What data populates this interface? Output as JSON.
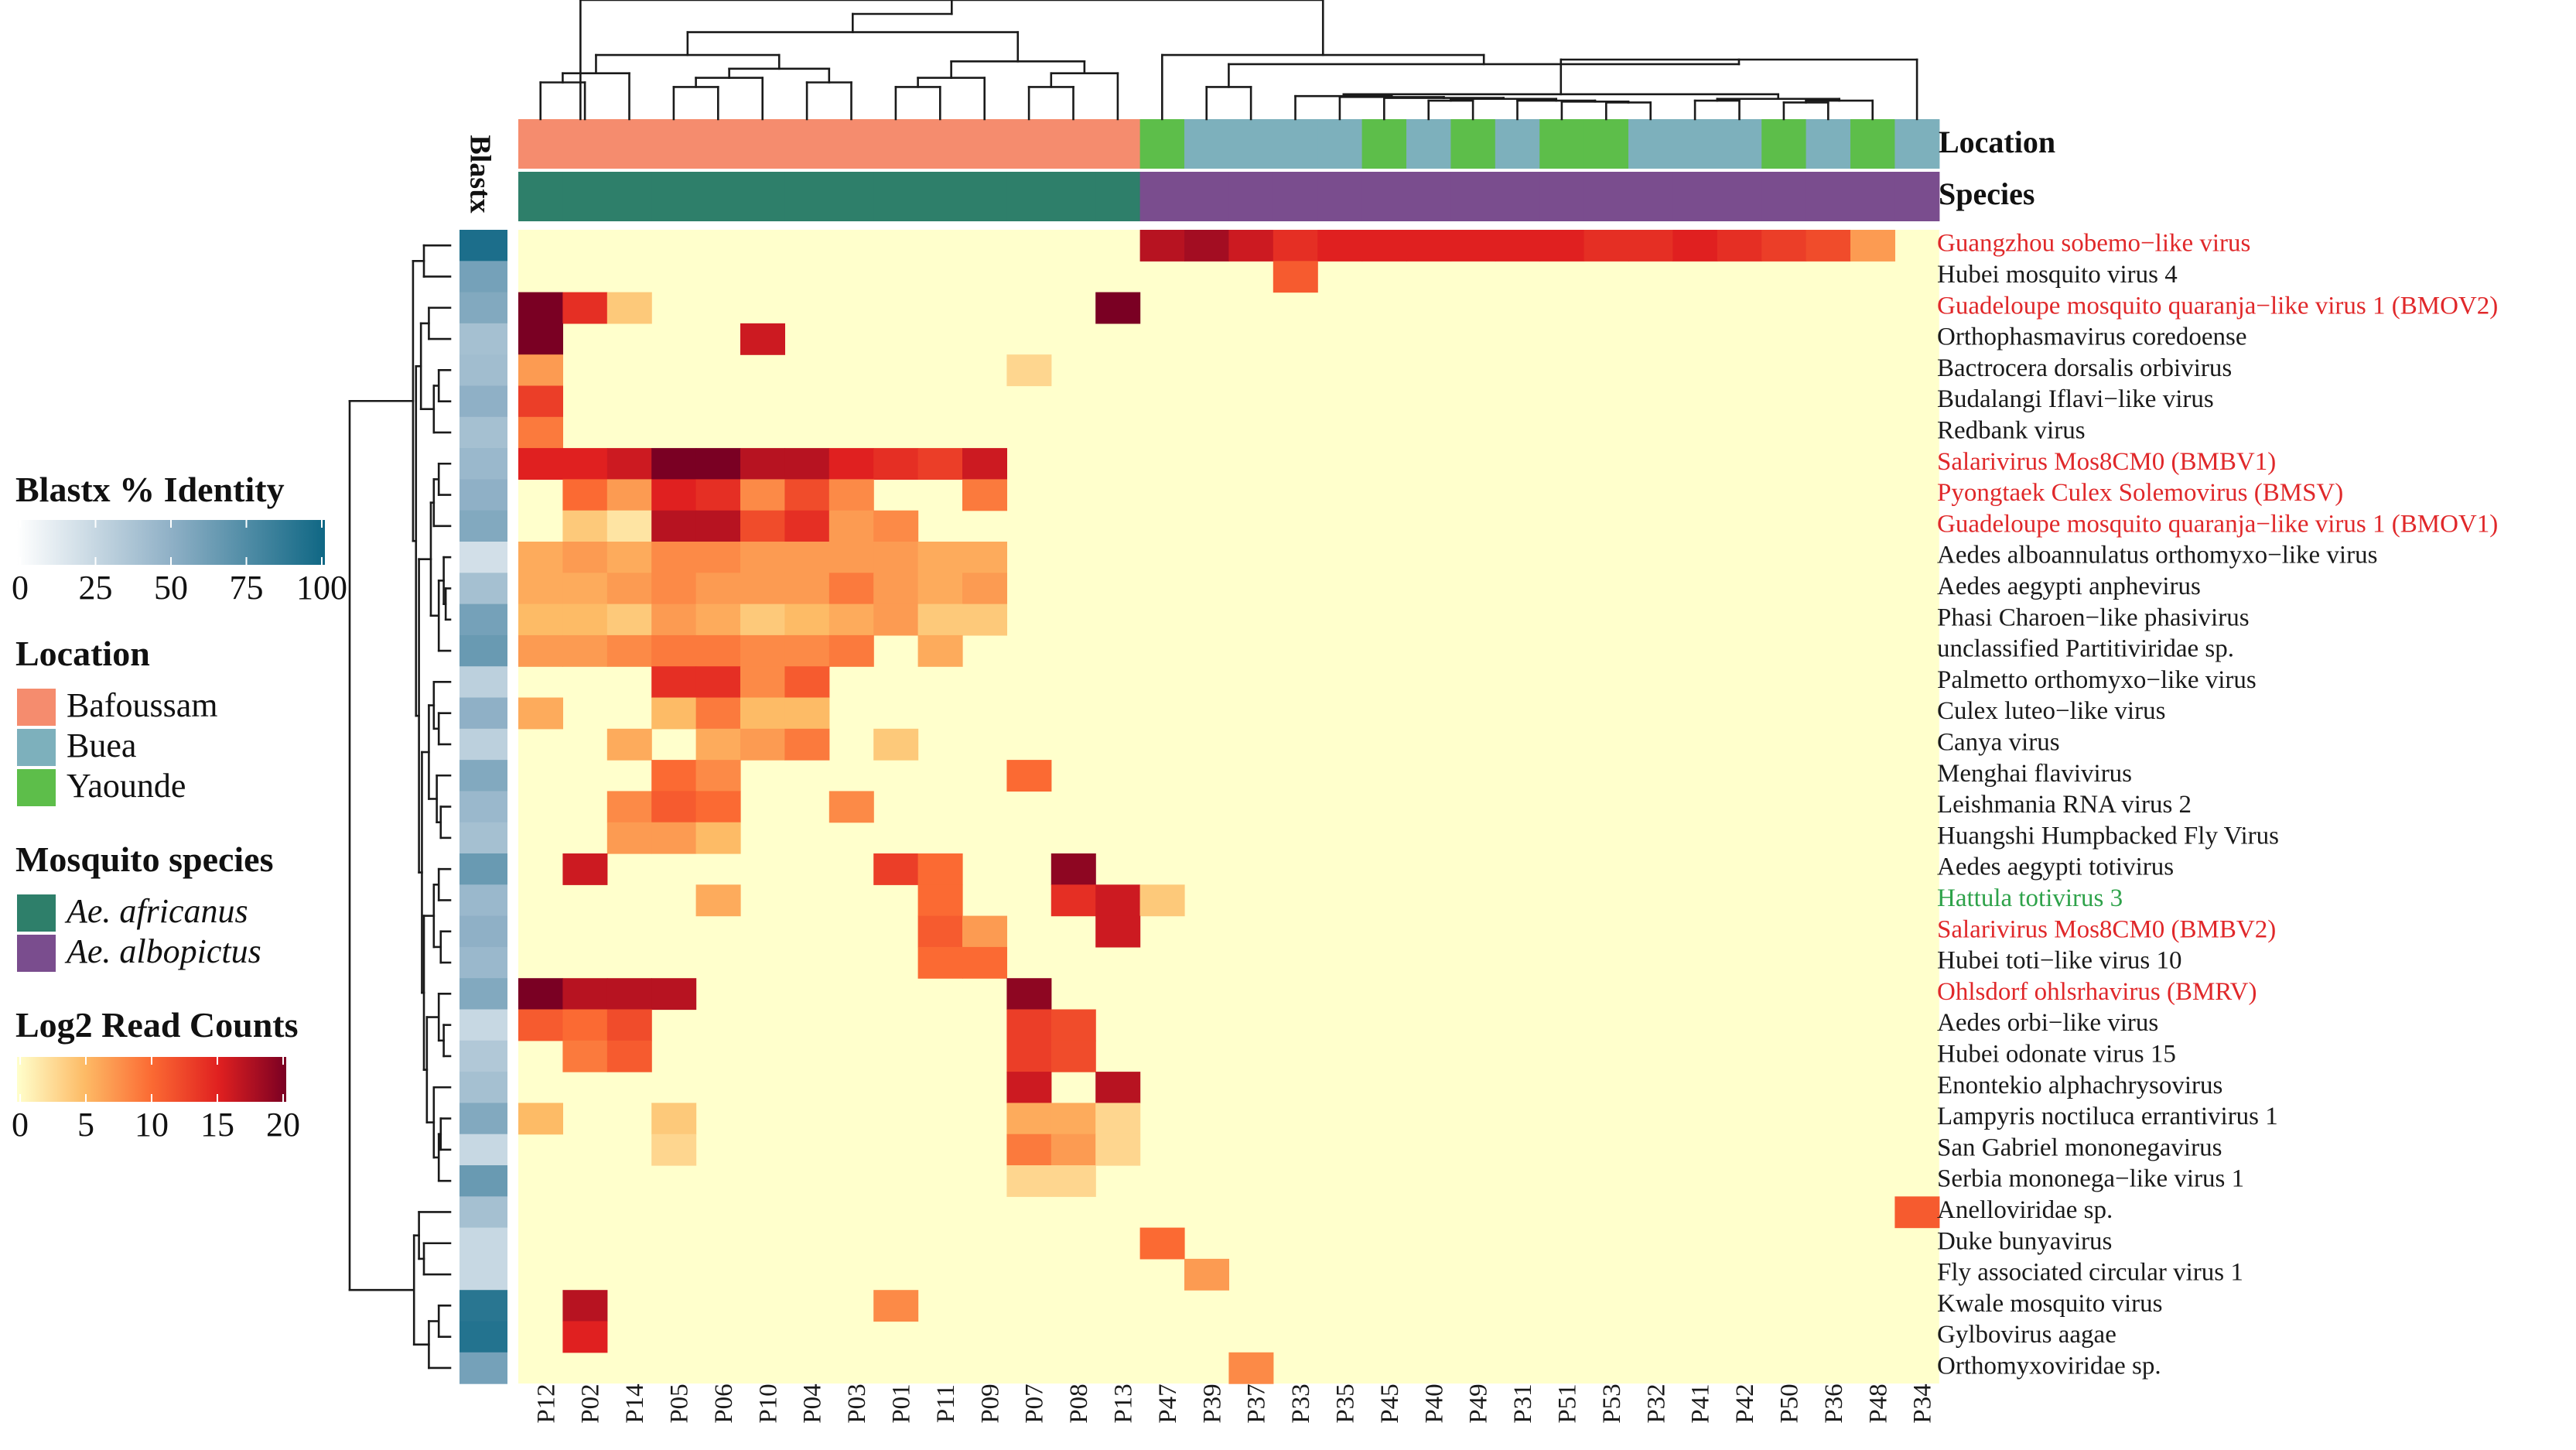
{
  "chart_data": {
    "type": "heatmap",
    "samples": [
      "P12",
      "P02",
      "P14",
      "P05",
      "P06",
      "P10",
      "P04",
      "P03",
      "P01",
      "P11",
      "P09",
      "P07",
      "P08",
      "P13",
      "P47",
      "P39",
      "P37",
      "P33",
      "P35",
      "P45",
      "P40",
      "P49",
      "P31",
      "P51",
      "P53",
      "P32",
      "P41",
      "P42",
      "P50",
      "P36",
      "P48",
      "P34"
    ],
    "location": [
      "Bafoussam",
      "Bafoussam",
      "Bafoussam",
      "Bafoussam",
      "Bafoussam",
      "Bafoussam",
      "Bafoussam",
      "Bafoussam",
      "Bafoussam",
      "Bafoussam",
      "Bafoussam",
      "Bafoussam",
      "Bafoussam",
      "Bafoussam",
      "Yaounde",
      "Buea",
      "Buea",
      "Buea",
      "Buea",
      "Yaounde",
      "Buea",
      "Yaounde",
      "Buea",
      "Yaounde",
      "Yaounde",
      "Buea",
      "Buea",
      "Buea",
      "Yaounde",
      "Buea",
      "Yaounde",
      "Buea"
    ],
    "species": [
      "Ae. africanus",
      "Ae. africanus",
      "Ae. africanus",
      "Ae. africanus",
      "Ae. africanus",
      "Ae. africanus",
      "Ae. africanus",
      "Ae. africanus",
      "Ae. africanus",
      "Ae. africanus",
      "Ae. africanus",
      "Ae. africanus",
      "Ae. africanus",
      "Ae. africanus",
      "Ae. albopictus",
      "Ae. albopictus",
      "Ae. albopictus",
      "Ae. albopictus",
      "Ae. albopictus",
      "Ae. albopictus",
      "Ae. albopictus",
      "Ae. albopictus",
      "Ae. albopictus",
      "Ae. albopictus",
      "Ae. albopictus",
      "Ae. albopictus",
      "Ae. albopictus",
      "Ae. albopictus",
      "Ae. albopictus",
      "Ae. albopictus",
      "Ae. albopictus",
      "Ae. albopictus"
    ],
    "viruses": [
      {
        "name": "Guangzhou sobemo−like virus",
        "group": "red",
        "blastx": 95
      },
      {
        "name": "Hubei mosquito virus 4",
        "group": "black",
        "blastx": 60
      },
      {
        "name": "Guadeloupe mosquito quaranja−like virus 1 (BMOV2)",
        "group": "red",
        "blastx": 55
      },
      {
        "name": "Orthophasmavirus coredoense",
        "group": "black",
        "blastx": 40
      },
      {
        "name": "Bactrocera dorsalis orbivirus",
        "group": "black",
        "blastx": 42
      },
      {
        "name": "Budalangi Iflavi−like virus",
        "group": "black",
        "blastx": 50
      },
      {
        "name": "Redbank virus",
        "group": "black",
        "blastx": 40
      },
      {
        "name": "Salarivirus Mos8CM0 (BMBV1)",
        "group": "red",
        "blastx": 45
      },
      {
        "name": "Pyongtaek Culex Solemovirus (BMSV)",
        "group": "red",
        "blastx": 50
      },
      {
        "name": "Guadeloupe mosquito quaranja−like virus 1 (BMOV1)",
        "group": "red",
        "blastx": 55
      },
      {
        "name": "Aedes alboannulatus orthomyxo−like virus",
        "group": "black",
        "blastx": 20
      },
      {
        "name": "Aedes aegypti anphevirus",
        "group": "black",
        "blastx": 40
      },
      {
        "name": "Phasi Charoen−like phasivirus",
        "group": "black",
        "blastx": 60
      },
      {
        "name": "unclassified Partitiviridae sp.",
        "group": "black",
        "blastx": 65
      },
      {
        "name": "Palmetto orthomyxo−like virus",
        "group": "black",
        "blastx": 30
      },
      {
        "name": "Culex luteo−like virus",
        "group": "black",
        "blastx": 50
      },
      {
        "name": "Canya virus",
        "group": "black",
        "blastx": 30
      },
      {
        "name": "Menghai flavivirus",
        "group": "black",
        "blastx": 55
      },
      {
        "name": "Leishmania RNA virus 2",
        "group": "black",
        "blastx": 45
      },
      {
        "name": "Huangshi Humpbacked Fly Virus",
        "group": "black",
        "blastx": 40
      },
      {
        "name": "Aedes aegypti totivirus",
        "group": "black",
        "blastx": 65
      },
      {
        "name": "Hattula totivirus 3",
        "group": "green",
        "blastx": 45
      },
      {
        "name": "Salarivirus Mos8CM0 (BMBV2)",
        "group": "red",
        "blastx": 50
      },
      {
        "name": "Hubei toti−like virus 10",
        "group": "black",
        "blastx": 45
      },
      {
        "name": "Ohlsdorf ohlsrhavirus (BMRV)",
        "group": "red",
        "blastx": 55
      },
      {
        "name": "Aedes orbi−like virus",
        "group": "black",
        "blastx": 25
      },
      {
        "name": "Hubei odonate virus 15",
        "group": "black",
        "blastx": 35
      },
      {
        "name": "Enontekio alphachrysovirus",
        "group": "black",
        "blastx": 40
      },
      {
        "name": "Lampyris noctiluca errantivirus 1",
        "group": "black",
        "blastx": 55
      },
      {
        "name": "San Gabriel mononegavirus",
        "group": "black",
        "blastx": 25
      },
      {
        "name": "Serbia mononega−like virus 1",
        "group": "black",
        "blastx": 65
      },
      {
        "name": "Anelloviridae sp.",
        "group": "black",
        "blastx": 40
      },
      {
        "name": "Duke bunyavirus",
        "group": "black",
        "blastx": 25
      },
      {
        "name": "Fly associated circular virus 1",
        "group": "black",
        "blastx": 25
      },
      {
        "name": "Kwale mosquito virus",
        "group": "black",
        "blastx": 90
      },
      {
        "name": "Gylbovirus aagae",
        "group": "black",
        "blastx": 92
      },
      {
        "name": "Orthomyxoviridae sp.",
        "group": "black",
        "blastx": 60
      }
    ],
    "nonzero_log2_counts": [
      [
        0,
        14,
        17
      ],
      [
        0,
        15,
        18
      ],
      [
        0,
        16,
        16
      ],
      [
        0,
        17,
        14
      ],
      [
        0,
        18,
        15
      ],
      [
        0,
        19,
        15
      ],
      [
        0,
        20,
        15
      ],
      [
        0,
        21,
        15
      ],
      [
        0,
        22,
        15
      ],
      [
        0,
        23,
        15
      ],
      [
        0,
        24,
        14
      ],
      [
        0,
        25,
        14
      ],
      [
        0,
        26,
        15
      ],
      [
        0,
        27,
        14
      ],
      [
        0,
        28,
        13
      ],
      [
        0,
        29,
        12
      ],
      [
        0,
        30,
        7
      ],
      [
        1,
        17,
        11
      ],
      [
        2,
        0,
        20
      ],
      [
        2,
        1,
        14
      ],
      [
        2,
        2,
        4
      ],
      [
        2,
        13,
        20
      ],
      [
        3,
        0,
        20
      ],
      [
        3,
        5,
        16
      ],
      [
        4,
        0,
        7
      ],
      [
        4,
        11,
        3
      ],
      [
        5,
        0,
        13
      ],
      [
        6,
        0,
        9
      ],
      [
        7,
        0,
        15
      ],
      [
        7,
        1,
        15
      ],
      [
        7,
        2,
        16
      ],
      [
        7,
        3,
        20
      ],
      [
        7,
        4,
        20
      ],
      [
        7,
        5,
        17
      ],
      [
        7,
        6,
        17
      ],
      [
        7,
        7,
        15
      ],
      [
        7,
        8,
        14
      ],
      [
        7,
        9,
        13
      ],
      [
        7,
        10,
        16
      ],
      [
        8,
        1,
        10
      ],
      [
        8,
        2,
        7
      ],
      [
        8,
        3,
        15
      ],
      [
        8,
        4,
        14
      ],
      [
        8,
        5,
        8
      ],
      [
        8,
        6,
        12
      ],
      [
        8,
        7,
        8
      ],
      [
        8,
        10,
        9
      ],
      [
        9,
        1,
        4
      ],
      [
        9,
        2,
        2
      ],
      [
        9,
        3,
        17
      ],
      [
        9,
        4,
        17
      ],
      [
        9,
        5,
        12
      ],
      [
        9,
        6,
        14
      ],
      [
        9,
        7,
        7
      ],
      [
        9,
        8,
        8
      ],
      [
        10,
        0,
        6
      ],
      [
        10,
        1,
        7
      ],
      [
        10,
        2,
        6
      ],
      [
        10,
        3,
        8
      ],
      [
        10,
        4,
        8
      ],
      [
        10,
        5,
        7
      ],
      [
        10,
        6,
        7
      ],
      [
        10,
        7,
        7
      ],
      [
        10,
        8,
        7
      ],
      [
        10,
        9,
        6
      ],
      [
        10,
        10,
        6
      ],
      [
        11,
        0,
        6
      ],
      [
        11,
        1,
        6
      ],
      [
        11,
        2,
        7
      ],
      [
        11,
        3,
        8
      ],
      [
        11,
        4,
        7
      ],
      [
        11,
        5,
        7
      ],
      [
        11,
        6,
        7
      ],
      [
        11,
        7,
        9
      ],
      [
        11,
        8,
        7
      ],
      [
        11,
        9,
        6
      ],
      [
        11,
        10,
        7
      ],
      [
        12,
        0,
        5
      ],
      [
        12,
        1,
        5
      ],
      [
        12,
        2,
        4
      ],
      [
        12,
        3,
        7
      ],
      [
        12,
        4,
        6
      ],
      [
        12,
        5,
        4
      ],
      [
        12,
        6,
        5
      ],
      [
        12,
        7,
        6
      ],
      [
        12,
        8,
        7
      ],
      [
        12,
        9,
        4
      ],
      [
        12,
        10,
        4
      ],
      [
        13,
        0,
        7
      ],
      [
        13,
        1,
        7
      ],
      [
        13,
        2,
        8
      ],
      [
        13,
        3,
        9
      ],
      [
        13,
        4,
        9
      ],
      [
        13,
        5,
        8
      ],
      [
        13,
        6,
        8
      ],
      [
        13,
        7,
        9
      ],
      [
        13,
        9,
        6
      ],
      [
        14,
        3,
        14
      ],
      [
        14,
        4,
        14
      ],
      [
        14,
        5,
        8
      ],
      [
        14,
        6,
        11
      ],
      [
        15,
        0,
        6
      ],
      [
        15,
        3,
        5
      ],
      [
        15,
        4,
        9
      ],
      [
        15,
        5,
        5
      ],
      [
        15,
        6,
        5
      ],
      [
        16,
        2,
        6
      ],
      [
        16,
        4,
        6
      ],
      [
        16,
        5,
        7
      ],
      [
        16,
        6,
        9
      ],
      [
        16,
        8,
        4
      ],
      [
        17,
        3,
        10
      ],
      [
        17,
        4,
        8
      ],
      [
        17,
        11,
        10
      ],
      [
        18,
        2,
        8
      ],
      [
        18,
        3,
        11
      ],
      [
        18,
        4,
        10
      ],
      [
        18,
        7,
        8
      ],
      [
        19,
        2,
        7
      ],
      [
        19,
        3,
        7
      ],
      [
        19,
        4,
        5
      ],
      [
        20,
        1,
        16
      ],
      [
        20,
        8,
        13
      ],
      [
        20,
        9,
        10
      ],
      [
        20,
        12,
        19
      ],
      [
        21,
        4,
        6
      ],
      [
        21,
        9,
        10
      ],
      [
        21,
        12,
        14
      ],
      [
        21,
        13,
        16
      ],
      [
        21,
        14,
        4
      ],
      [
        22,
        9,
        11
      ],
      [
        22,
        10,
        7
      ],
      [
        22,
        13,
        16
      ],
      [
        23,
        9,
        10
      ],
      [
        23,
        10,
        10
      ],
      [
        24,
        0,
        20
      ],
      [
        24,
        1,
        17
      ],
      [
        24,
        2,
        17
      ],
      [
        24,
        3,
        17
      ],
      [
        24,
        11,
        19
      ],
      [
        25,
        0,
        11
      ],
      [
        25,
        1,
        10
      ],
      [
        25,
        2,
        12
      ],
      [
        25,
        11,
        13
      ],
      [
        25,
        12,
        12
      ],
      [
        26,
        1,
        9
      ],
      [
        26,
        2,
        11
      ],
      [
        26,
        11,
        13
      ],
      [
        26,
        12,
        12
      ],
      [
        27,
        11,
        16
      ],
      [
        27,
        13,
        17
      ],
      [
        28,
        0,
        5
      ],
      [
        28,
        3,
        4
      ],
      [
        28,
        11,
        6
      ],
      [
        28,
        12,
        6
      ],
      [
        28,
        13,
        3
      ],
      [
        29,
        3,
        3
      ],
      [
        29,
        11,
        9
      ],
      [
        29,
        12,
        7
      ],
      [
        29,
        13,
        3
      ],
      [
        30,
        11,
        3
      ],
      [
        30,
        12,
        3
      ],
      [
        31,
        31,
        11
      ],
      [
        32,
        14,
        10
      ],
      [
        33,
        15,
        7
      ],
      [
        34,
        1,
        17
      ],
      [
        34,
        8,
        8
      ],
      [
        35,
        1,
        15
      ],
      [
        36,
        16,
        8
      ]
    ],
    "annotation_titles": [
      "Blastx",
      "Location",
      "Species"
    ],
    "legends": {
      "blastx": {
        "title": "Blastx % Identity",
        "ticks": [
          "0",
          "25",
          "50",
          "75",
          "100"
        ],
        "range": [
          0,
          100
        ]
      },
      "location": {
        "title": "Location",
        "items": [
          "Bafoussam",
          "Buea",
          "Yaounde"
        ],
        "colors": [
          "#f58c6e",
          "#7db0bc",
          "#5dbe4a"
        ]
      },
      "species": {
        "title": "Mosquito species",
        "items": [
          "Ae. africanus",
          "Ae. albopictus"
        ],
        "colors": [
          "#2e7f6a",
          "#7a4d8e"
        ]
      },
      "log2": {
        "title": "Log2 Read Counts",
        "ticks": [
          "0",
          "5",
          "10",
          "15",
          "20"
        ],
        "range": [
          0,
          20
        ]
      }
    },
    "label_colors": {
      "red": "#e0282a",
      "black": "#1a1a1a",
      "green": "#2ea24a"
    }
  }
}
